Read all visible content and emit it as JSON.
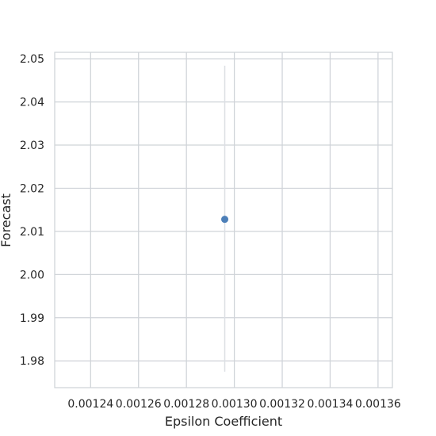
{
  "chart_data": {
    "type": "scatter",
    "title": "",
    "xlabel": "Epsilon Coefficient",
    "ylabel": "Forecast",
    "xlim": [
      0.001225,
      0.001366
    ],
    "ylim": [
      1.9738,
      2.0515
    ],
    "x_ticks": [
      0.00124,
      0.00126,
      0.00128,
      0.0013,
      0.00132,
      0.00134,
      0.00136
    ],
    "x_tick_labels": [
      "0.00124",
      "0.00126",
      "0.00128",
      "0.00130",
      "0.00132",
      "0.00134",
      "0.00136"
    ],
    "y_ticks": [
      1.98,
      1.99,
      2.0,
      2.01,
      2.02,
      2.03,
      2.04,
      2.05
    ],
    "y_tick_labels": [
      "1.98",
      "1.99",
      "2.00",
      "2.01",
      "2.02",
      "2.03",
      "2.04",
      "2.05"
    ],
    "grid": true,
    "points": [
      {
        "x": 0.001296,
        "y": 2.0128,
        "err_low": 1.9775,
        "err_high": 2.0484
      }
    ],
    "colors": {
      "point": "#4c7fb8",
      "errorbar": "#dcdfe4",
      "grid": "#cfd3d8",
      "spine": "#cfd3d8"
    }
  }
}
